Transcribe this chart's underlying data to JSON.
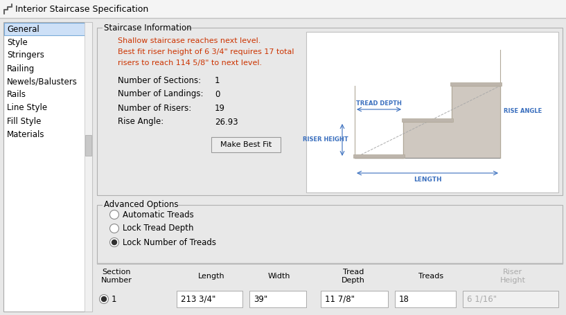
{
  "title": "Interior Staircase Specification",
  "bg_color": "#e8e8e8",
  "left_panel_bg": "#ffffff",
  "selected_item": "General",
  "nav_items": [
    "General",
    "Style",
    "Stringers",
    "Railing",
    "Newels/Balusters",
    "Rails",
    "Line Style",
    "Fill Style",
    "Materials"
  ],
  "section1_title": "Staircase Information",
  "warning_line1": "Shallow staircase reaches next level.",
  "warning_line2": "Best fit riser height of 6 3/4\" requires 17 total",
  "warning_line3": "risers to reach 114 5/8\" to next level.",
  "fields": [
    {
      "label": "Number of Sections:",
      "value": "1"
    },
    {
      "label": "Number of Landings:",
      "value": "0"
    },
    {
      "label": "Number of Risers:",
      "value": "19"
    },
    {
      "label": "Rise Angle:",
      "value": "26.93"
    }
  ],
  "button_label": "Make Best Fit",
  "section2_title": "Advanced Options",
  "radio_options": [
    "Automatic Treads",
    "Lock Tread Depth",
    "Lock Number of Treads"
  ],
  "selected_radio": 2,
  "table_row": [
    "1",
    "213 3/4\"",
    "39\"",
    "11 7/8\"",
    "18",
    "6 1/16\""
  ],
  "stair_fill": "#cfc8c0",
  "stair_edge": "#b0a898",
  "stair_cap": "#bdb5ac",
  "label_color": "#3a6fbe",
  "warning_color": "#cc3300",
  "field_label_color": "#000000",
  "selected_bg": "#cde0f7",
  "selected_border": "#7aaad8",
  "riser_height_color": "#aaaaaa",
  "scrollbar_color": "#c8c8c8",
  "groupbox_bg": "#e8e8e8",
  "groupbox_line": "#b0b0b0"
}
